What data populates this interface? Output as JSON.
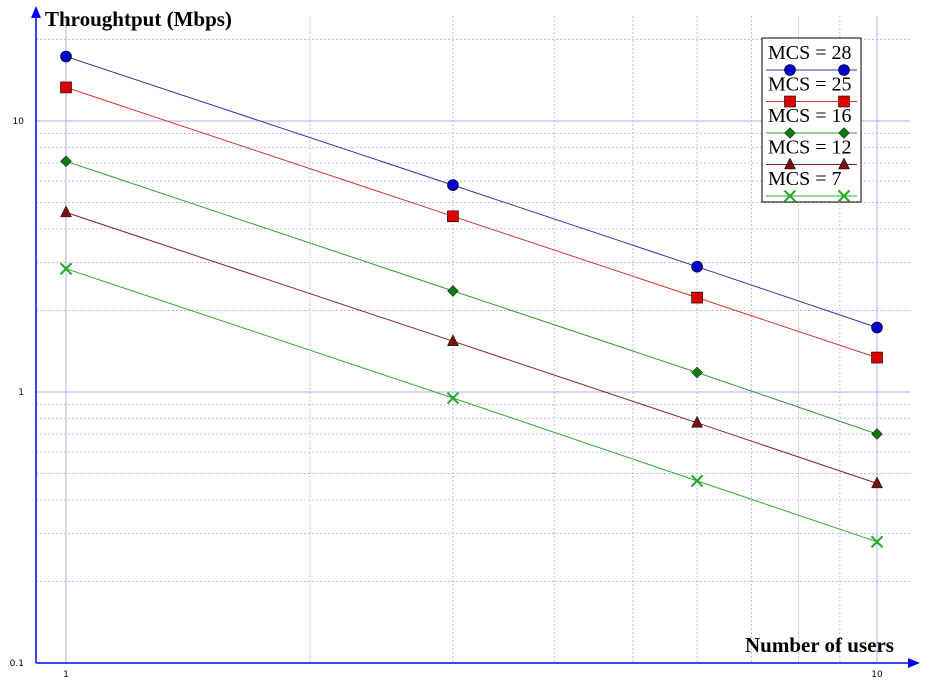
{
  "chart_data": {
    "type": "line",
    "title": "",
    "xlabel": "Number of users",
    "ylabel": "Throughtput (Mbps)",
    "x_scale": "log",
    "y_scale": "log",
    "xlim": [
      1,
      10
    ],
    "ylim": [
      0.1,
      20
    ],
    "x_ticks": [
      "1",
      "10"
    ],
    "y_ticks": [
      "0.1",
      "1",
      "10"
    ],
    "grid": true,
    "legend_position": "top-right",
    "x": [
      1,
      3,
      6,
      10
    ],
    "series": [
      {
        "name": "MCS = 28",
        "color": "#0000cc",
        "line_color": "#3333aa",
        "marker": "circle",
        "values": [
          17.3,
          5.8,
          2.9,
          1.73
        ]
      },
      {
        "name": "MCS = 25",
        "color": "#dd0000",
        "line_color": "#dd3333",
        "marker": "square",
        "values": [
          13.3,
          4.45,
          2.23,
          1.34
        ]
      },
      {
        "name": "MCS = 16",
        "color": "#117711",
        "line_color": "#339933",
        "marker": "diamond",
        "values": [
          7.1,
          2.36,
          1.18,
          0.7
        ]
      },
      {
        "name": "MCS = 12",
        "color": "#771111",
        "line_color": "#882222",
        "marker": "triangle",
        "values": [
          4.6,
          1.54,
          0.77,
          0.46
        ]
      },
      {
        "name": "MCS = 7",
        "color": "#22aa22",
        "line_color": "#33aa33",
        "marker": "x",
        "values": [
          2.85,
          0.95,
          0.47,
          0.28
        ]
      }
    ]
  }
}
